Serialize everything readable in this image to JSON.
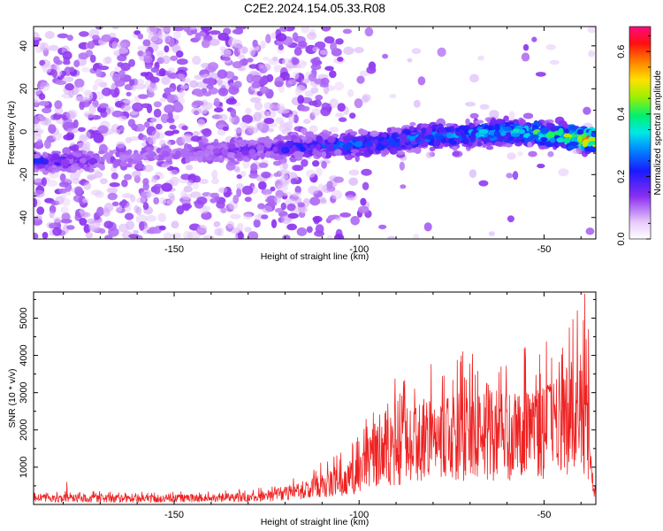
{
  "title": "C2E2.2024.154.05.33.R08",
  "chart_data": [
    {
      "type": "heatmap",
      "xlabel": "Height of straight line (km)",
      "ylabel": "Frequency (Hz)",
      "xlim": [
        -188,
        -36
      ],
      "ylim": [
        -50,
        49
      ],
      "xticks": [
        -150,
        -100,
        -50
      ],
      "yticks": [
        -40,
        -20,
        0,
        20,
        40
      ],
      "colorbar": {
        "label": "Normalized spectral amplitude",
        "range": [
          0.0,
          0.68
        ],
        "ticks": [
          "0.0",
          "0.2",
          "0.4",
          "0.6"
        ],
        "colormap": "rainbow (white → violet → blue → cyan → green → yellow → red → magenta)"
      },
      "ridge": {
        "description": "main signal band (frequency center vs height)",
        "x": [
          -186,
          -175,
          -160,
          -140,
          -125,
          -115,
          -100,
          -85,
          -70,
          -55,
          -45,
          -37
        ],
        "center_hz": [
          -14,
          -14,
          -12,
          -9,
          -8,
          -7,
          -6,
          -3,
          -1,
          0,
          -2,
          -4
        ],
        "peak_amplitude": [
          0.22,
          0.18,
          0.1,
          0.15,
          0.18,
          0.25,
          0.28,
          0.3,
          0.32,
          0.38,
          0.45,
          0.62
        ]
      }
    },
    {
      "type": "line",
      "xlabel": "Height of straight line (km)",
      "ylabel": "SNR (10 * v/v)",
      "xlim": [
        -188,
        -36
      ],
      "ylim": [
        0,
        5700
      ],
      "xticks": [
        -150,
        -100,
        -50
      ],
      "yticks": [
        1000,
        2000,
        3000,
        4000,
        5000
      ],
      "color": "#ee2222",
      "envelope": {
        "x": [
          -188,
          -180,
          -160,
          -140,
          -125,
          -115,
          -105,
          -100,
          -97,
          -90,
          -80,
          -70,
          -60,
          -50,
          -45,
          -40,
          -38,
          -37,
          -36
        ],
        "level": [
          150,
          160,
          150,
          170,
          200,
          400,
          600,
          800,
          1300,
          1500,
          1700,
          1800,
          1800,
          1900,
          2200,
          2600,
          1800,
          400,
          300
        ],
        "peaks": [
          {
            "x": -179,
            "y": 600
          },
          {
            "x": -97,
            "y": 1800
          },
          {
            "x": -88,
            "y": 3300
          },
          {
            "x": -85,
            "y": 3100
          },
          {
            "x": -72,
            "y": 4100
          },
          {
            "x": -65,
            "y": 3200
          },
          {
            "x": -55,
            "y": 3900
          },
          {
            "x": -51,
            "y": 3500
          },
          {
            "x": -45,
            "y": 4200
          },
          {
            "x": -41,
            "y": 5200
          },
          {
            "x": -39,
            "y": 5650
          },
          {
            "x": -38,
            "y": 4700
          }
        ]
      }
    }
  ]
}
